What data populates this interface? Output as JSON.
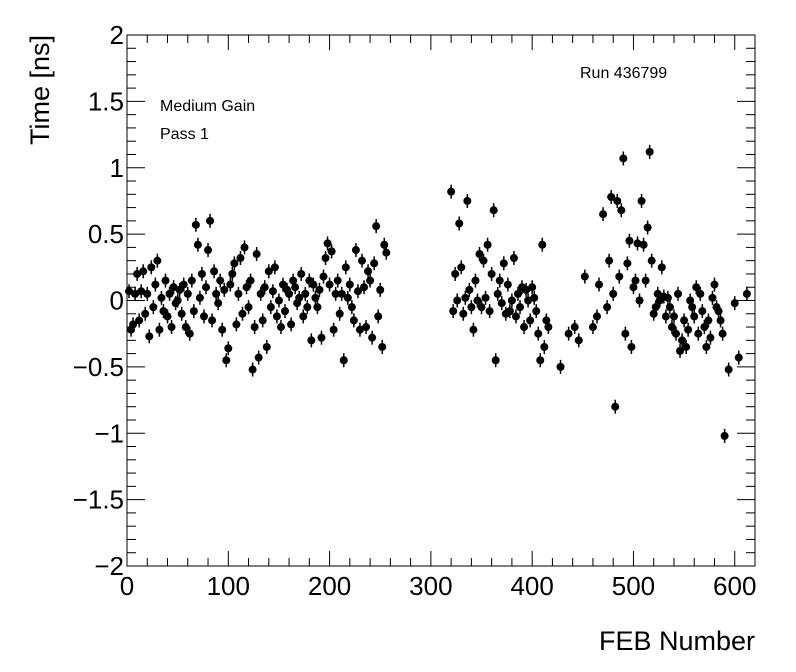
{
  "chart_data": {
    "type": "scatter",
    "title": "",
    "xlabel": "FEB Number",
    "ylabel": "Time [ns]",
    "xlim": [
      0,
      620
    ],
    "ylim": [
      -2,
      2
    ],
    "xticks": [
      0,
      100,
      200,
      300,
      400,
      500,
      600
    ],
    "yticks": [
      -2,
      -1.5,
      -1,
      -0.5,
      0,
      0.5,
      1,
      1.5,
      2
    ],
    "grid": false,
    "marker_color": "#000000",
    "annotations": {
      "run": "Run 436799",
      "gain": "Medium Gain",
      "pass": "Pass 1"
    },
    "series": [
      {
        "points": [
          [
            2,
            0.07
          ],
          [
            4,
            -0.22
          ],
          [
            6,
            -0.18
          ],
          [
            8,
            0.05
          ],
          [
            10,
            0.2
          ],
          [
            12,
            -0.15
          ],
          [
            14,
            0.07
          ],
          [
            16,
            0.22
          ],
          [
            18,
            -0.1
          ],
          [
            20,
            0.05
          ],
          [
            22,
            -0.27
          ],
          [
            24,
            0.25
          ],
          [
            26,
            -0.05
          ],
          [
            28,
            0.12
          ],
          [
            30,
            0.3
          ],
          [
            32,
            -0.22
          ],
          [
            34,
            0.02
          ],
          [
            36,
            -0.08
          ],
          [
            38,
            0.15
          ],
          [
            40,
            -0.12
          ],
          [
            42,
            0.05
          ],
          [
            44,
            -0.2
          ],
          [
            46,
            0.1
          ],
          [
            48,
            -0.02
          ],
          [
            50,
            0.0
          ],
          [
            52,
            0.08
          ],
          [
            54,
            -0.1
          ],
          [
            56,
            0.12
          ],
          [
            58,
            -0.2
          ],
          [
            60,
            0.05
          ],
          [
            62,
            -0.25
          ],
          [
            64,
            0.15
          ],
          [
            66,
            -0.08
          ],
          [
            68,
            0.57
          ],
          [
            70,
            0.42
          ],
          [
            72,
            0.02
          ],
          [
            74,
            0.2
          ],
          [
            76,
            -0.12
          ],
          [
            78,
            0.1
          ],
          [
            80,
            0.38
          ],
          [
            82,
            0.6
          ],
          [
            84,
            -0.15
          ],
          [
            86,
            0.22
          ],
          [
            88,
            0.05
          ],
          [
            90,
            -0.02
          ],
          [
            92,
            0.15
          ],
          [
            94,
            -0.22
          ],
          [
            96,
            0.08
          ],
          [
            98,
            -0.45
          ],
          [
            100,
            -0.36
          ],
          [
            102,
            0.12
          ],
          [
            104,
            0.2
          ],
          [
            106,
            0.28
          ],
          [
            108,
            -0.18
          ],
          [
            110,
            0.05
          ],
          [
            112,
            0.32
          ],
          [
            114,
            -0.1
          ],
          [
            116,
            0.4
          ],
          [
            118,
            0.1
          ],
          [
            120,
            -0.05
          ],
          [
            122,
            0.15
          ],
          [
            124,
            -0.52
          ],
          [
            126,
            -0.2
          ],
          [
            128,
            0.35
          ],
          [
            130,
            -0.43
          ],
          [
            132,
            0.05
          ],
          [
            134,
            -0.15
          ],
          [
            136,
            0.1
          ],
          [
            138,
            -0.35
          ],
          [
            140,
            0.22
          ],
          [
            142,
            -0.05
          ],
          [
            144,
            0.07
          ],
          [
            146,
            0.25
          ],
          [
            148,
            -0.12
          ],
          [
            150,
            0.0
          ],
          [
            152,
            -0.2
          ],
          [
            154,
            0.12
          ],
          [
            156,
            -0.08
          ],
          [
            158,
            0.08
          ],
          [
            160,
            0.05
          ],
          [
            162,
            -0.18
          ],
          [
            164,
            0.15
          ],
          [
            166,
            0.1
          ],
          [
            168,
            -0.02
          ],
          [
            170,
            0.02
          ],
          [
            172,
            0.2
          ],
          [
            174,
            -0.12
          ],
          [
            176,
            0.05
          ],
          [
            178,
            -0.05
          ],
          [
            180,
            0.15
          ],
          [
            182,
            -0.3
          ],
          [
            184,
            0.12
          ],
          [
            186,
            0.02
          ],
          [
            188,
            -0.05
          ],
          [
            190,
            0.08
          ],
          [
            192,
            -0.28
          ],
          [
            194,
            0.18
          ],
          [
            196,
            0.32
          ],
          [
            198,
            0.43
          ],
          [
            200,
            0.12
          ],
          [
            202,
            0.37
          ],
          [
            204,
            -0.22
          ],
          [
            206,
            0.05
          ],
          [
            208,
            0.15
          ],
          [
            210,
            -0.1
          ],
          [
            212,
            0.05
          ],
          [
            214,
            -0.45
          ],
          [
            216,
            0.25
          ],
          [
            218,
            0.02
          ],
          [
            220,
            0.12
          ],
          [
            222,
            -0.05
          ],
          [
            224,
            -0.15
          ],
          [
            226,
            0.38
          ],
          [
            228,
            0.07
          ],
          [
            230,
            -0.22
          ],
          [
            232,
            0.3
          ],
          [
            234,
            0.1
          ],
          [
            236,
            -0.2
          ],
          [
            238,
            0.22
          ],
          [
            240,
            0.15
          ],
          [
            242,
            -0.28
          ],
          [
            244,
            0.28
          ],
          [
            246,
            0.56
          ],
          [
            248,
            -0.12
          ],
          [
            250,
            0.08
          ],
          [
            252,
            -0.35
          ],
          [
            254,
            0.42
          ],
          [
            256,
            0.36
          ],
          [
            320,
            0.82
          ],
          [
            322,
            -0.08
          ],
          [
            324,
            0.2
          ],
          [
            326,
            0.0
          ],
          [
            328,
            0.58
          ],
          [
            330,
            0.25
          ],
          [
            332,
            -0.1
          ],
          [
            334,
            0.02
          ],
          [
            336,
            0.75
          ],
          [
            338,
            0.08
          ],
          [
            340,
            -0.05
          ],
          [
            342,
            -0.22
          ],
          [
            344,
            0.15
          ],
          [
            346,
            0.0
          ],
          [
            348,
            0.35
          ],
          [
            350,
            -0.05
          ],
          [
            352,
            0.3
          ],
          [
            354,
            0.02
          ],
          [
            356,
            0.42
          ],
          [
            358,
            -0.08
          ],
          [
            360,
            0.2
          ],
          [
            362,
            0.68
          ],
          [
            364,
            -0.45
          ],
          [
            366,
            0.05
          ],
          [
            368,
            0.15
          ],
          [
            370,
            -0.02
          ],
          [
            372,
            0.28
          ],
          [
            374,
            -0.1
          ],
          [
            376,
            0.12
          ],
          [
            378,
            -0.08
          ],
          [
            380,
            0.0
          ],
          [
            382,
            0.32
          ],
          [
            384,
            -0.12
          ],
          [
            386,
            0.05
          ],
          [
            388,
            -0.05
          ],
          [
            390,
            0.1
          ],
          [
            392,
            -0.2
          ],
          [
            394,
            0.08
          ],
          [
            396,
            0.0
          ],
          [
            398,
            -0.15
          ],
          [
            400,
            0.1
          ],
          [
            402,
            0.02
          ],
          [
            404,
            -0.08
          ],
          [
            406,
            -0.25
          ],
          [
            408,
            -0.45
          ],
          [
            410,
            0.42
          ],
          [
            412,
            -0.35
          ],
          [
            414,
            -0.15
          ],
          [
            416,
            -0.2
          ],
          [
            428,
            -0.5
          ],
          [
            436,
            -0.25
          ],
          [
            442,
            -0.2
          ],
          [
            446,
            -0.3
          ],
          [
            452,
            0.18
          ],
          [
            460,
            -0.2
          ],
          [
            464,
            -0.12
          ],
          [
            466,
            0.12
          ],
          [
            470,
            0.65
          ],
          [
            474,
            -0.05
          ],
          [
            476,
            0.3
          ],
          [
            478,
            0.78
          ],
          [
            480,
            0.05
          ],
          [
            482,
            -0.8
          ],
          [
            484,
            0.75
          ],
          [
            486,
            0.18
          ],
          [
            488,
            0.68
          ],
          [
            490,
            1.07
          ],
          [
            492,
            -0.25
          ],
          [
            494,
            0.28
          ],
          [
            496,
            0.45
          ],
          [
            498,
            -0.35
          ],
          [
            500,
            0.1
          ],
          [
            502,
            0.15
          ],
          [
            504,
            0.43
          ],
          [
            506,
            0.0
          ],
          [
            508,
            0.75
          ],
          [
            510,
            0.42
          ],
          [
            512,
            0.15
          ],
          [
            514,
            0.55
          ],
          [
            516,
            1.12
          ],
          [
            518,
            0.3
          ],
          [
            520,
            -0.1
          ],
          [
            522,
            -0.05
          ],
          [
            524,
            0.05
          ],
          [
            526,
            0.0
          ],
          [
            528,
            0.25
          ],
          [
            530,
            0.03
          ],
          [
            532,
            -0.12
          ],
          [
            534,
            0.02
          ],
          [
            536,
            -0.05
          ],
          [
            538,
            -0.2
          ],
          [
            540,
            -0.12
          ],
          [
            542,
            -0.25
          ],
          [
            544,
            0.05
          ],
          [
            546,
            -0.38
          ],
          [
            548,
            -0.3
          ],
          [
            550,
            -0.15
          ],
          [
            552,
            -0.35
          ],
          [
            554,
            -0.22
          ],
          [
            556,
            0.0
          ],
          [
            558,
            -0.05
          ],
          [
            560,
            -0.12
          ],
          [
            562,
            0.1
          ],
          [
            564,
            -0.25
          ],
          [
            566,
            0.05
          ],
          [
            568,
            -0.08
          ],
          [
            570,
            -0.2
          ],
          [
            572,
            -0.35
          ],
          [
            574,
            -0.15
          ],
          [
            576,
            -0.28
          ],
          [
            578,
            0.02
          ],
          [
            580,
            0.12
          ],
          [
            582,
            -0.05
          ],
          [
            584,
            -0.08
          ],
          [
            586,
            -0.15
          ],
          [
            588,
            -0.25
          ],
          [
            590,
            -1.02
          ],
          [
            594,
            -0.52
          ],
          [
            600,
            -0.02
          ],
          [
            604,
            -0.43
          ],
          [
            612,
            0.05
          ]
        ]
      }
    ]
  }
}
